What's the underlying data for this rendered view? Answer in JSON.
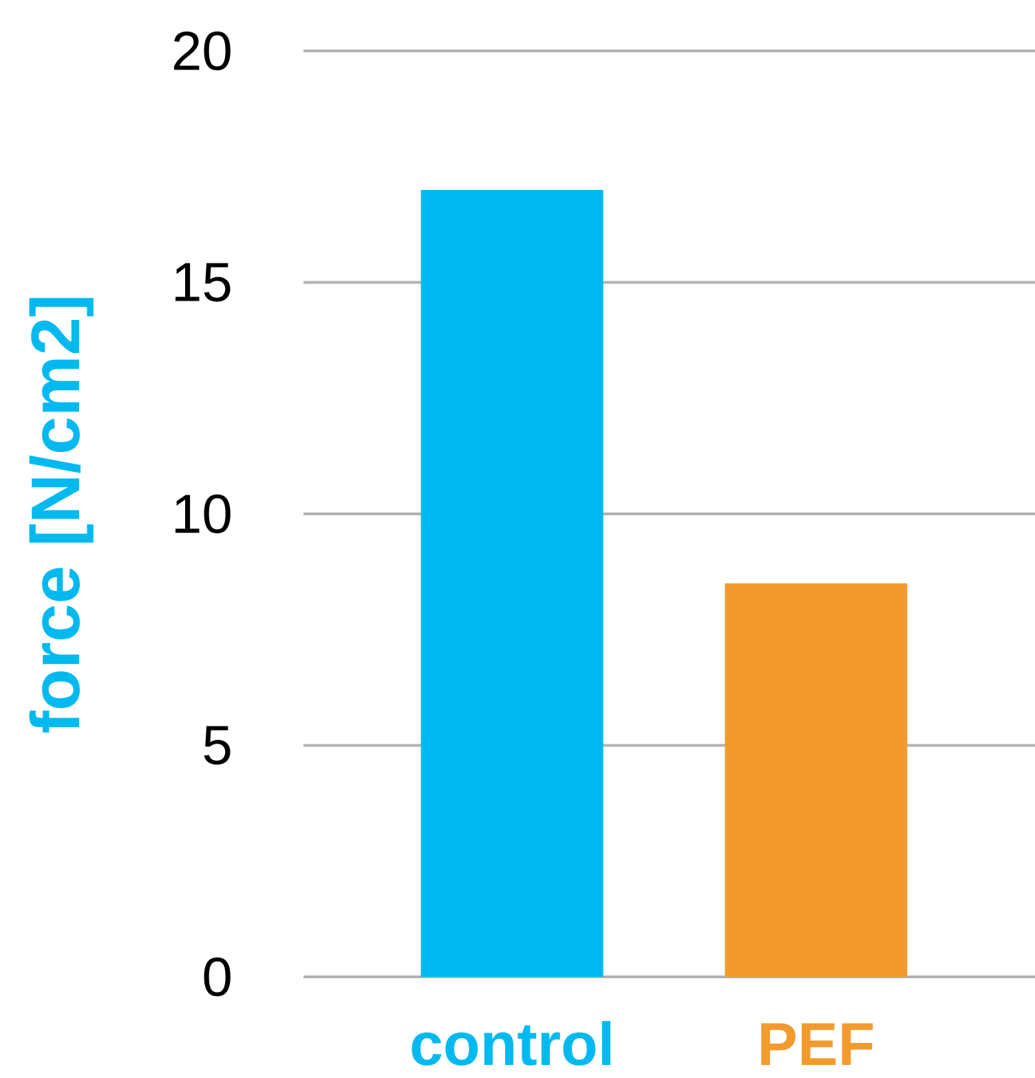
{
  "chart_data": {
    "type": "bar",
    "ylabel": "force [N/cm2]",
    "categories": [
      "control",
      "PEF"
    ],
    "values": [
      17,
      8.5
    ],
    "colors": [
      "#00b9f0",
      "#f39a2f"
    ],
    "ylim": [
      0,
      20
    ],
    "yticks": [
      0,
      5,
      10,
      15,
      20
    ],
    "grid": "y"
  }
}
